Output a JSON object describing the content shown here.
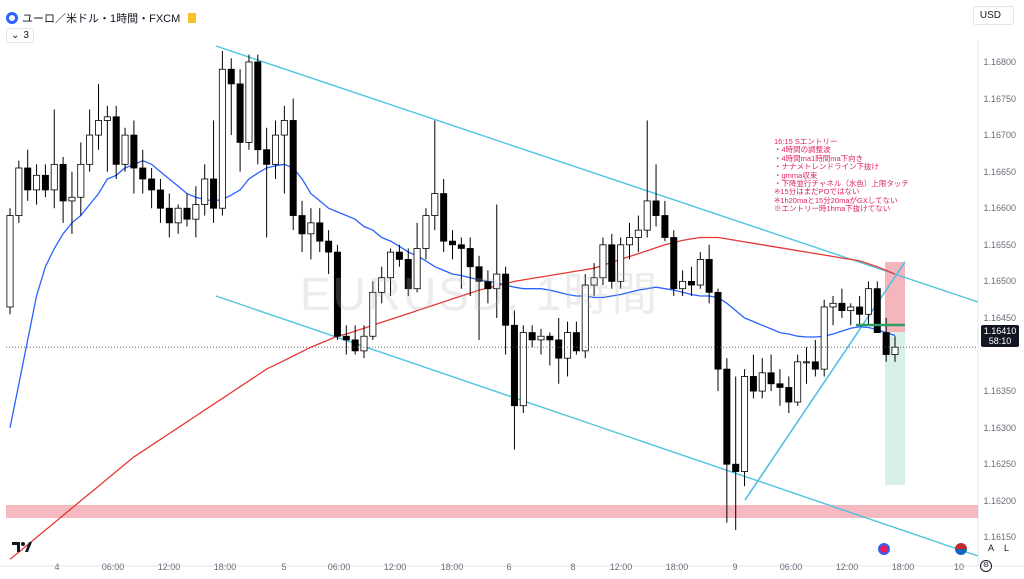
{
  "header": {
    "symbol_title": "ユーロ／米ドル・1時間・FXCM",
    "indicator_count": "3",
    "currency": "USD"
  },
  "watermark": "EURUSD, 1時間",
  "current_price": {
    "price": "1.16410",
    "countdown": "58:10"
  },
  "annotation": "16:15 Sエントリー\n・4時間の調整波\n・4時間ma1時間ma下向き\n・ナナメトレンドライン下抜け\n・gmma収束\n・下降並行チャネル（水色）上限タッチ\n※15分はまだPOではない\n※1h20maと15分20maがGXしてない\n※エントリー時1hma下抜けてない",
  "price_axis": [
    "1.16800",
    "1.16750",
    "1.16700",
    "1.16650",
    "1.16600",
    "1.16550",
    "1.16500",
    "1.16450",
    "1.16350",
    "1.16300",
    "1.16250",
    "1.16200",
    "1.16150"
  ],
  "time_axis": [
    "4",
    "06:00",
    "12:00",
    "18:00",
    "5",
    "06:00",
    "12:00",
    "18:00",
    "6",
    "8",
    "12:00",
    "18:00",
    "9",
    "06:00",
    "12:00",
    "18:00",
    "10"
  ],
  "bottom_controls": {
    "auto": "A",
    "log": "L"
  },
  "colors": {
    "bull_candle": "#ffffff",
    "bear_candle": "#000000",
    "channel": "#4fc3e0",
    "ma_blue": "#2962ff",
    "ma_red": "#e53935",
    "zone": "#f4a7b0",
    "tp_zone": "#d9efe9",
    "entry_line": "#2e9e62"
  },
  "chart_data": {
    "type": "candlestick",
    "symbol": "EURUSD",
    "timeframe": "1H",
    "ylim": [
      1.1613,
      1.1683
    ],
    "candles": [
      {
        "o": 1.16465,
        "h": 1.166,
        "l": 1.16455,
        "c": 1.1659
      },
      {
        "o": 1.1659,
        "h": 1.16665,
        "l": 1.1658,
        "c": 1.16655
      },
      {
        "o": 1.16655,
        "h": 1.1668,
        "l": 1.1661,
        "c": 1.16625
      },
      {
        "o": 1.16625,
        "h": 1.1666,
        "l": 1.16605,
        "c": 1.16645
      },
      {
        "o": 1.16645,
        "h": 1.1666,
        "l": 1.16615,
        "c": 1.16625
      },
      {
        "o": 1.16625,
        "h": 1.16735,
        "l": 1.166,
        "c": 1.1666
      },
      {
        "o": 1.1666,
        "h": 1.1667,
        "l": 1.1658,
        "c": 1.1661
      },
      {
        "o": 1.1661,
        "h": 1.1665,
        "l": 1.16565,
        "c": 1.16615
      },
      {
        "o": 1.16615,
        "h": 1.1669,
        "l": 1.1659,
        "c": 1.1666
      },
      {
        "o": 1.1666,
        "h": 1.16735,
        "l": 1.1665,
        "c": 1.167
      },
      {
        "o": 1.167,
        "h": 1.1677,
        "l": 1.1668,
        "c": 1.1672
      },
      {
        "o": 1.1672,
        "h": 1.1674,
        "l": 1.1665,
        "c": 1.16725
      },
      {
        "o": 1.16725,
        "h": 1.1674,
        "l": 1.1664,
        "c": 1.1666
      },
      {
        "o": 1.1666,
        "h": 1.1671,
        "l": 1.1665,
        "c": 1.167
      },
      {
        "o": 1.167,
        "h": 1.1672,
        "l": 1.1662,
        "c": 1.16655
      },
      {
        "o": 1.16655,
        "h": 1.1668,
        "l": 1.1662,
        "c": 1.1664
      },
      {
        "o": 1.1664,
        "h": 1.16655,
        "l": 1.166,
        "c": 1.16625
      },
      {
        "o": 1.16625,
        "h": 1.1664,
        "l": 1.1658,
        "c": 1.166
      },
      {
        "o": 1.166,
        "h": 1.1662,
        "l": 1.1656,
        "c": 1.1658
      },
      {
        "o": 1.1658,
        "h": 1.16605,
        "l": 1.16565,
        "c": 1.166
      },
      {
        "o": 1.166,
        "h": 1.1662,
        "l": 1.16575,
        "c": 1.16585
      },
      {
        "o": 1.16585,
        "h": 1.1663,
        "l": 1.1656,
        "c": 1.16605
      },
      {
        "o": 1.16605,
        "h": 1.1666,
        "l": 1.1659,
        "c": 1.1664
      },
      {
        "o": 1.1664,
        "h": 1.1672,
        "l": 1.1658,
        "c": 1.166
      },
      {
        "o": 1.166,
        "h": 1.16815,
        "l": 1.1659,
        "c": 1.1679
      },
      {
        "o": 1.1679,
        "h": 1.16805,
        "l": 1.167,
        "c": 1.1677
      },
      {
        "o": 1.1677,
        "h": 1.1679,
        "l": 1.1665,
        "c": 1.1669
      },
      {
        "o": 1.1669,
        "h": 1.1681,
        "l": 1.1668,
        "c": 1.168
      },
      {
        "o": 1.168,
        "h": 1.1681,
        "l": 1.1666,
        "c": 1.1668
      },
      {
        "o": 1.1668,
        "h": 1.1671,
        "l": 1.1656,
        "c": 1.1666
      },
      {
        "o": 1.1666,
        "h": 1.1672,
        "l": 1.1664,
        "c": 1.167
      },
      {
        "o": 1.167,
        "h": 1.1674,
        "l": 1.1662,
        "c": 1.1672
      },
      {
        "o": 1.1672,
        "h": 1.1675,
        "l": 1.1657,
        "c": 1.1659
      },
      {
        "o": 1.1659,
        "h": 1.1661,
        "l": 1.1654,
        "c": 1.16565
      },
      {
        "o": 1.16565,
        "h": 1.166,
        "l": 1.1653,
        "c": 1.1658
      },
      {
        "o": 1.1658,
        "h": 1.166,
        "l": 1.1654,
        "c": 1.16555
      },
      {
        "o": 1.16555,
        "h": 1.1657,
        "l": 1.1651,
        "c": 1.1654
      },
      {
        "o": 1.1654,
        "h": 1.1655,
        "l": 1.1642,
        "c": 1.16425
      },
      {
        "o": 1.16425,
        "h": 1.1644,
        "l": 1.164,
        "c": 1.1642
      },
      {
        "o": 1.1642,
        "h": 1.1644,
        "l": 1.164,
        "c": 1.16405
      },
      {
        "o": 1.16405,
        "h": 1.1644,
        "l": 1.16395,
        "c": 1.16425
      },
      {
        "o": 1.16425,
        "h": 1.165,
        "l": 1.1642,
        "c": 1.16485
      },
      {
        "o": 1.16485,
        "h": 1.1652,
        "l": 1.1647,
        "c": 1.16505
      },
      {
        "o": 1.16505,
        "h": 1.16545,
        "l": 1.1648,
        "c": 1.1654
      },
      {
        "o": 1.1654,
        "h": 1.1655,
        "l": 1.1652,
        "c": 1.1653
      },
      {
        "o": 1.1653,
        "h": 1.16545,
        "l": 1.1648,
        "c": 1.1649
      },
      {
        "o": 1.1649,
        "h": 1.1658,
        "l": 1.16485,
        "c": 1.16545
      },
      {
        "o": 1.16545,
        "h": 1.166,
        "l": 1.1653,
        "c": 1.1659
      },
      {
        "o": 1.1659,
        "h": 1.1672,
        "l": 1.1657,
        "c": 1.1662
      },
      {
        "o": 1.1662,
        "h": 1.1664,
        "l": 1.1654,
        "c": 1.16555
      },
      {
        "o": 1.16555,
        "h": 1.1657,
        "l": 1.1653,
        "c": 1.1655
      },
      {
        "o": 1.1655,
        "h": 1.1656,
        "l": 1.1649,
        "c": 1.16545
      },
      {
        "o": 1.16545,
        "h": 1.1656,
        "l": 1.1648,
        "c": 1.1652
      },
      {
        "o": 1.1652,
        "h": 1.16535,
        "l": 1.1642,
        "c": 1.165
      },
      {
        "o": 1.165,
        "h": 1.16515,
        "l": 1.1647,
        "c": 1.1649
      },
      {
        "o": 1.1649,
        "h": 1.16605,
        "l": 1.1645,
        "c": 1.1651
      },
      {
        "o": 1.1651,
        "h": 1.1652,
        "l": 1.164,
        "c": 1.1644
      },
      {
        "o": 1.1644,
        "h": 1.1646,
        "l": 1.1627,
        "c": 1.1633
      },
      {
        "o": 1.1633,
        "h": 1.1644,
        "l": 1.1632,
        "c": 1.1643
      },
      {
        "o": 1.1643,
        "h": 1.1644,
        "l": 1.1641,
        "c": 1.1642
      },
      {
        "o": 1.1642,
        "h": 1.16435,
        "l": 1.164,
        "c": 1.16425
      },
      {
        "o": 1.16425,
        "h": 1.1643,
        "l": 1.16385,
        "c": 1.1642
      },
      {
        "o": 1.1642,
        "h": 1.1645,
        "l": 1.1636,
        "c": 1.16395
      },
      {
        "o": 1.16395,
        "h": 1.16445,
        "l": 1.1637,
        "c": 1.1643
      },
      {
        "o": 1.1643,
        "h": 1.16445,
        "l": 1.164,
        "c": 1.16405
      },
      {
        "o": 1.16405,
        "h": 1.1651,
        "l": 1.16395,
        "c": 1.16495
      },
      {
        "o": 1.16495,
        "h": 1.16525,
        "l": 1.1648,
        "c": 1.16505
      },
      {
        "o": 1.16505,
        "h": 1.1656,
        "l": 1.16495,
        "c": 1.1655
      },
      {
        "o": 1.1655,
        "h": 1.16565,
        "l": 1.1649,
        "c": 1.165
      },
      {
        "o": 1.165,
        "h": 1.1656,
        "l": 1.1649,
        "c": 1.1655
      },
      {
        "o": 1.1655,
        "h": 1.1658,
        "l": 1.1653,
        "c": 1.1656
      },
      {
        "o": 1.1656,
        "h": 1.1659,
        "l": 1.1654,
        "c": 1.1657
      },
      {
        "o": 1.1657,
        "h": 1.1672,
        "l": 1.1656,
        "c": 1.1661
      },
      {
        "o": 1.1661,
        "h": 1.1666,
        "l": 1.16575,
        "c": 1.1659
      },
      {
        "o": 1.1659,
        "h": 1.1661,
        "l": 1.16555,
        "c": 1.1656
      },
      {
        "o": 1.1656,
        "h": 1.1657,
        "l": 1.1648,
        "c": 1.1649
      },
      {
        "o": 1.1649,
        "h": 1.16515,
        "l": 1.1648,
        "c": 1.165
      },
      {
        "o": 1.165,
        "h": 1.1652,
        "l": 1.1648,
        "c": 1.16495
      },
      {
        "o": 1.16495,
        "h": 1.1654,
        "l": 1.1649,
        "c": 1.1653
      },
      {
        "o": 1.1653,
        "h": 1.1655,
        "l": 1.1647,
        "c": 1.16485
      },
      {
        "o": 1.16485,
        "h": 1.1649,
        "l": 1.1635,
        "c": 1.1638
      },
      {
        "o": 1.1638,
        "h": 1.16395,
        "l": 1.1617,
        "c": 1.1625
      },
      {
        "o": 1.1625,
        "h": 1.1637,
        "l": 1.1616,
        "c": 1.1624
      },
      {
        "o": 1.1624,
        "h": 1.1638,
        "l": 1.1622,
        "c": 1.1637
      },
      {
        "o": 1.1637,
        "h": 1.164,
        "l": 1.1634,
        "c": 1.1635
      },
      {
        "o": 1.1635,
        "h": 1.16395,
        "l": 1.1634,
        "c": 1.16375
      },
      {
        "o": 1.16375,
        "h": 1.164,
        "l": 1.1635,
        "c": 1.1636
      },
      {
        "o": 1.1636,
        "h": 1.1638,
        "l": 1.1633,
        "c": 1.16355
      },
      {
        "o": 1.16355,
        "h": 1.1637,
        "l": 1.1632,
        "c": 1.16335
      },
      {
        "o": 1.16335,
        "h": 1.164,
        "l": 1.1633,
        "c": 1.1639
      },
      {
        "o": 1.1639,
        "h": 1.1641,
        "l": 1.1636,
        "c": 1.1639
      },
      {
        "o": 1.1639,
        "h": 1.1642,
        "l": 1.1637,
        "c": 1.1638
      },
      {
        "o": 1.1638,
        "h": 1.16475,
        "l": 1.1637,
        "c": 1.16465
      },
      {
        "o": 1.16465,
        "h": 1.1648,
        "l": 1.1644,
        "c": 1.1647
      },
      {
        "o": 1.1647,
        "h": 1.1649,
        "l": 1.1645,
        "c": 1.1646
      },
      {
        "o": 1.1646,
        "h": 1.1647,
        "l": 1.1644,
        "c": 1.16465
      },
      {
        "o": 1.16465,
        "h": 1.1648,
        "l": 1.1644,
        "c": 1.16455
      },
      {
        "o": 1.16455,
        "h": 1.165,
        "l": 1.1644,
        "c": 1.1649
      },
      {
        "o": 1.1649,
        "h": 1.165,
        "l": 1.1643,
        "c": 1.1643
      },
      {
        "o": 1.1643,
        "h": 1.1645,
        "l": 1.1639,
        "c": 1.164
      },
      {
        "o": 1.164,
        "h": 1.16425,
        "l": 1.1639,
        "c": 1.1641
      }
    ],
    "ma_blue": [
      1.163,
      1.1636,
      1.1642,
      1.1648,
      1.1652,
      1.16545,
      1.16565,
      1.1658,
      1.1659,
      1.16605,
      1.1662,
      1.1664,
      1.16645,
      1.16655,
      1.1666,
      1.16665,
      1.1666,
      1.1665,
      1.1664,
      1.1663,
      1.1662,
      1.16615,
      1.16612,
      1.1661,
      1.16612,
      1.16618,
      1.16625,
      1.1664,
      1.16648,
      1.16655,
      1.16658,
      1.1666,
      1.16655,
      1.1664,
      1.1662,
      1.1661,
      1.166,
      1.16595,
      1.1659,
      1.16585,
      1.16575,
      1.1657,
      1.1656,
      1.16555,
      1.16548,
      1.1654,
      1.16535,
      1.16528,
      1.1652,
      1.16515,
      1.1651,
      1.16508,
      1.16505,
      1.16502,
      1.165,
      1.16498,
      1.16495,
      1.16492,
      1.1649,
      1.1649,
      1.1649,
      1.16488,
      1.16485,
      1.16482,
      1.1648,
      1.1648,
      1.16478,
      1.16478,
      1.1648,
      1.16482,
      1.16485,
      1.16488,
      1.1649,
      1.16492,
      1.1649,
      1.16488,
      1.16485,
      1.16482,
      1.1648,
      1.1648,
      1.16478,
      1.1647,
      1.1646,
      1.1645,
      1.16445,
      1.1644,
      1.16435,
      1.1643,
      1.16428,
      1.16425,
      1.16424,
      1.16424,
      1.16425,
      1.16428,
      1.16432,
      1.16436,
      1.16438,
      1.16437,
      1.16434,
      1.1643,
      1.16426
    ],
    "ma_red": [
      1.1612,
      1.1613,
      1.1614,
      1.1615,
      1.1616,
      1.1617,
      1.1618,
      1.1619,
      1.162,
      1.1621,
      1.1622,
      1.1623,
      1.1624,
      1.1625,
      1.1626,
      1.16268,
      1.16276,
      1.16284,
      1.16292,
      1.163,
      1.16308,
      1.16316,
      1.16324,
      1.16332,
      1.1634,
      1.16348,
      1.16356,
      1.16364,
      1.16372,
      1.1638,
      1.16386,
      1.16392,
      1.16398,
      1.16404,
      1.1641,
      1.16415,
      1.1642,
      1.16425,
      1.16428,
      1.16432,
      1.16436,
      1.1644,
      1.16444,
      1.16448,
      1.16452,
      1.16456,
      1.1646,
      1.16464,
      1.16468,
      1.16472,
      1.16476,
      1.1648,
      1.16484,
      1.16488,
      1.16491,
      1.16494,
      1.16497,
      1.165,
      1.16502,
      1.16504,
      1.16506,
      1.16508,
      1.1651,
      1.16512,
      1.16514,
      1.16516,
      1.16518,
      1.16522,
      1.16526,
      1.1653,
      1.16534,
      1.16538,
      1.16542,
      1.16546,
      1.1655,
      1.16553,
      1.16556,
      1.16558,
      1.1656,
      1.1656,
      1.1656,
      1.16558,
      1.16556,
      1.16554,
      1.16552,
      1.1655,
      1.16548,
      1.16546,
      1.16544,
      1.16542,
      1.1654,
      1.16538,
      1.16536,
      1.16534,
      1.16532,
      1.1653,
      1.16528,
      1.16524,
      1.1652,
      1.16515,
      1.1651
    ]
  }
}
